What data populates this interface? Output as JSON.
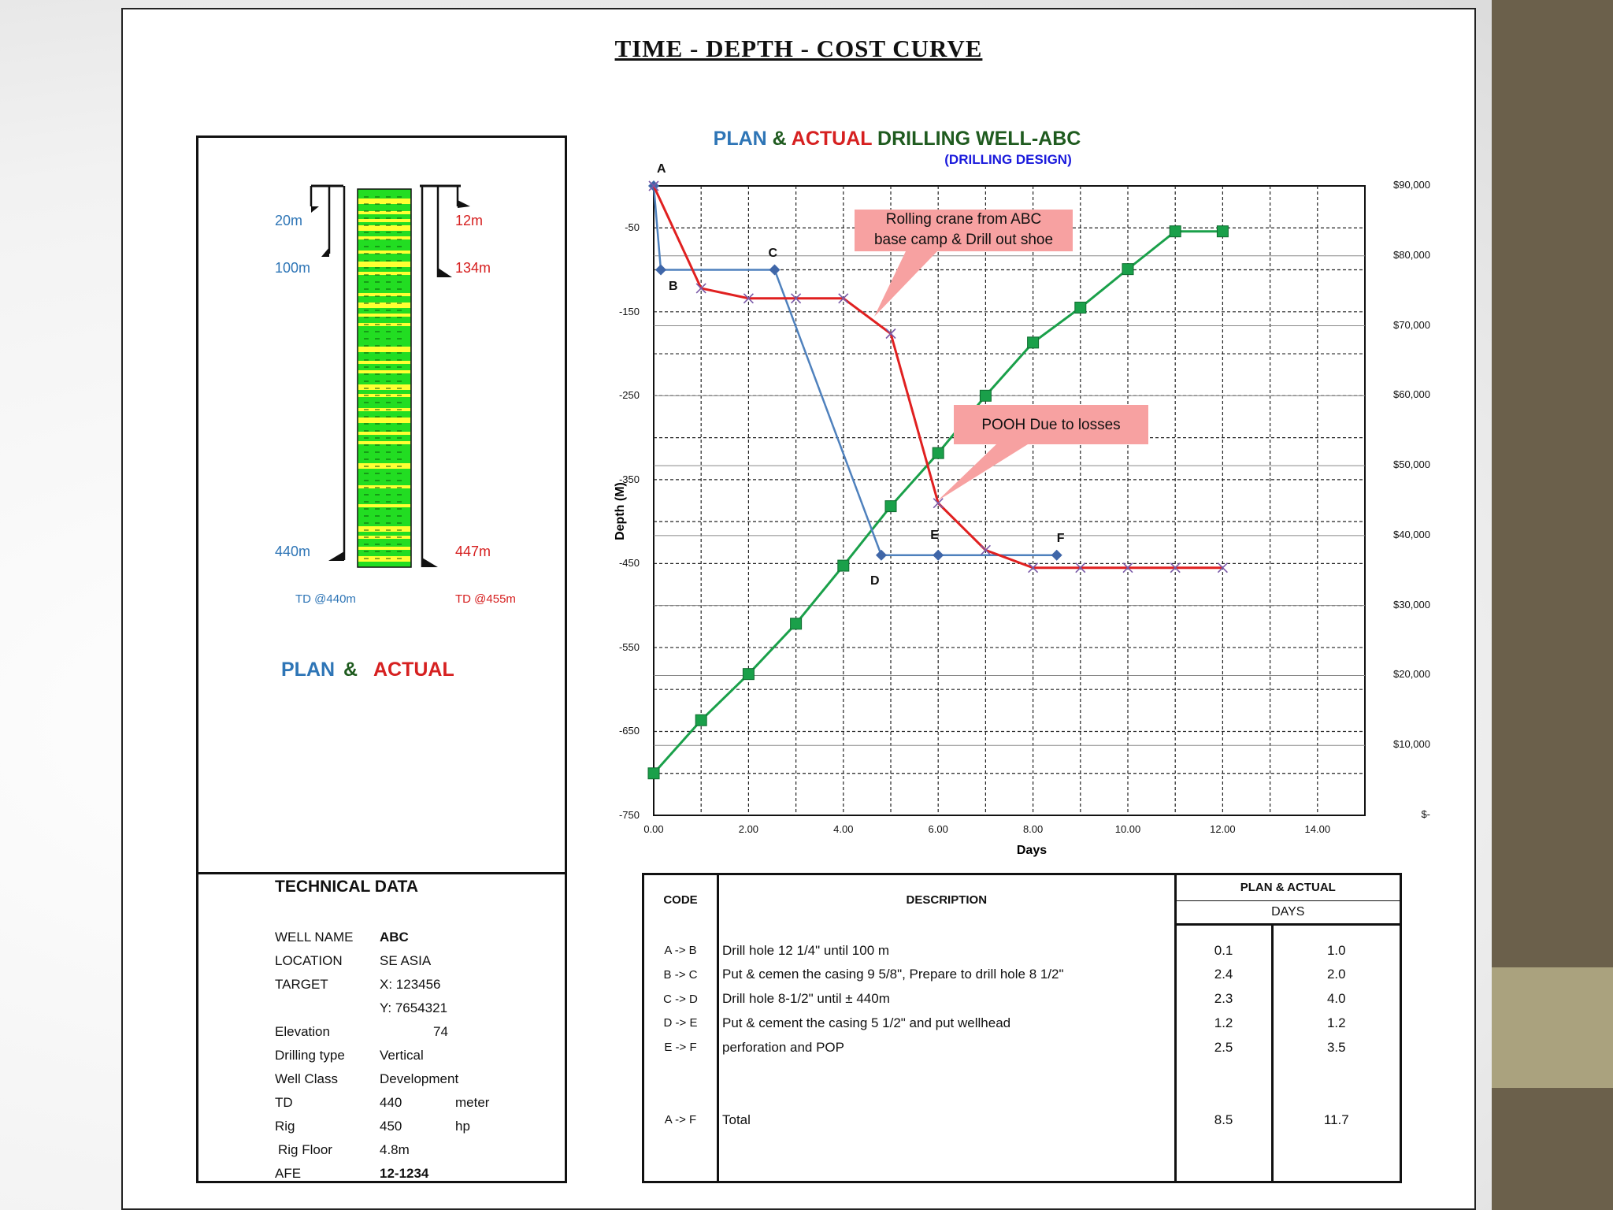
{
  "main_title": "TIME - DEPTH - COST CURVE",
  "well_diagram": {
    "plan_labels": [
      "20m",
      "100m",
      "440m"
    ],
    "actual_labels": [
      "12m",
      "134m",
      "447m"
    ],
    "td_plan": "TD @440m",
    "td_actual": "TD @455m",
    "legend": {
      "plan": "PLAN",
      "amp": "&",
      "actual": "ACTUAL"
    },
    "colors": {
      "plan": "#2e75b6",
      "actual": "#d62020",
      "amp": "#1f5b1f",
      "formation": "#22dd22",
      "stripe": "#ffff33"
    }
  },
  "technical_data": {
    "title": "TECHNICAL DATA",
    "rows": [
      {
        "key": "WELL NAME",
        "value": "ABC",
        "unit": "",
        "bold": true
      },
      {
        "key": "LOCATION",
        "value": "SE ASIA",
        "unit": ""
      },
      {
        "key": "TARGET",
        "value": "X: 123456",
        "unit": ""
      },
      {
        "key": "",
        "value": "Y: 7654321",
        "unit": ""
      },
      {
        "key": "Elevation",
        "value": "74",
        "unit": ""
      },
      {
        "key": "Drilling type",
        "value": "Vertical",
        "unit": ""
      },
      {
        "key": "Well Class",
        "value": "Development",
        "unit": ""
      },
      {
        "key": "TD",
        "value": "440",
        "unit": "meter"
      },
      {
        "key": "Rig",
        "value": "450",
        "unit": "hp"
      },
      {
        "key": "Rig Floor",
        "value": "4.8m",
        "unit": ""
      },
      {
        "key": "AFE",
        "value": "12-1234",
        "unit": "",
        "bold": true
      }
    ]
  },
  "chart_title": {
    "plan": "PLAN",
    "amp": "&",
    "actual": "ACTUAL",
    "rest": "DRILLING WELL-ABC",
    "sub": "(DRILLING DESIGN)"
  },
  "callouts": [
    {
      "text_line1": "Rolling crane from ABC",
      "text_line2": "base camp & Drill out shoe"
    },
    {
      "text_line1": "POOH Due to losses",
      "text_line2": ""
    }
  ],
  "chart_data": {
    "type": "line",
    "xlabel": "Days",
    "ylabel": "Depth (M)",
    "xlim": [
      0,
      15
    ],
    "ylim": [
      -750,
      0
    ],
    "y2lim": [
      0,
      90000
    ],
    "x_ticks": [
      "0.00",
      "2.00",
      "4.00",
      "6.00",
      "8.00",
      "10.00",
      "12.00",
      "14.00"
    ],
    "y_ticks": [
      "-50",
      "-150",
      "-250",
      "-350",
      "-450",
      "-550",
      "-650",
      "-750"
    ],
    "y2_ticks": [
      "$90,000",
      "$80,000",
      "$70,000",
      "$60,000",
      "$50,000",
      "$40,000",
      "$30,000",
      "$20,000",
      "$10,000",
      "$-"
    ],
    "series": [
      {
        "color": "#4f81bd",
        "axis": "depth",
        "points": [
          [
            0,
            0
          ],
          [
            0.15,
            -100
          ],
          [
            2.55,
            -100
          ],
          [
            4.8,
            -440
          ],
          [
            6.0,
            -440
          ],
          [
            8.5,
            -440
          ]
        ],
        "labels": [
          "A",
          "B",
          "C",
          "D",
          "E",
          "F"
        ]
      },
      {
        "color": "#e02020",
        "axis": "depth",
        "points": [
          [
            0,
            0
          ],
          [
            1.0,
            -122
          ],
          [
            2.0,
            -134
          ],
          [
            3.0,
            -134
          ],
          [
            4.0,
            -134
          ],
          [
            5.0,
            -176
          ],
          [
            6.0,
            -378
          ],
          [
            7.0,
            -434
          ],
          [
            8.0,
            -455
          ],
          [
            9.0,
            -455
          ],
          [
            10.0,
            -455
          ],
          [
            11.0,
            -455
          ],
          [
            12.0,
            -455
          ]
        ]
      },
      {
        "color": "#1aa04a",
        "axis": "cost",
        "points": [
          [
            0,
            6000
          ],
          [
            1.0,
            13600
          ],
          [
            2.0,
            20200
          ],
          [
            3.0,
            27400
          ],
          [
            4.0,
            35700
          ],
          [
            5.0,
            44200
          ],
          [
            6.0,
            51800
          ],
          [
            7.0,
            60000
          ],
          [
            8.0,
            67600
          ],
          [
            9.0,
            72600
          ],
          [
            10.0,
            78100
          ],
          [
            11.0,
            83500
          ],
          [
            12.0,
            83500
          ]
        ]
      }
    ]
  },
  "codes_table": {
    "headers": {
      "code": "CODE",
      "description": "DESCRIPTION",
      "plan_actual": "PLAN & ACTUAL",
      "days": "DAYS"
    },
    "rows": [
      {
        "code": "A -> B",
        "description": "Drill hole 12 1/4\" until 100 m",
        "plan": "0.1",
        "actual": "1.0"
      },
      {
        "code": "B -> C",
        "description": "Put & cemen the casing 9 5/8\", Prepare to drill hole 8 1/2\"",
        "plan": "2.4",
        "actual": "2.0"
      },
      {
        "code": "C -> D",
        "description": "Drill hole 8-1/2\" until ± 440m",
        "plan": "2.3",
        "actual": "4.0"
      },
      {
        "code": "D -> E",
        "description": "Put & cement the casing 5 1/2\" and put wellhead",
        "plan": "1.2",
        "actual": "1.2"
      },
      {
        "code": "E -> F",
        "description": "perforation and POP",
        "plan": "2.5",
        "actual": "3.5"
      }
    ],
    "total": {
      "code": "A -> F",
      "description": "Total",
      "plan": "8.5",
      "actual": "11.7"
    }
  }
}
